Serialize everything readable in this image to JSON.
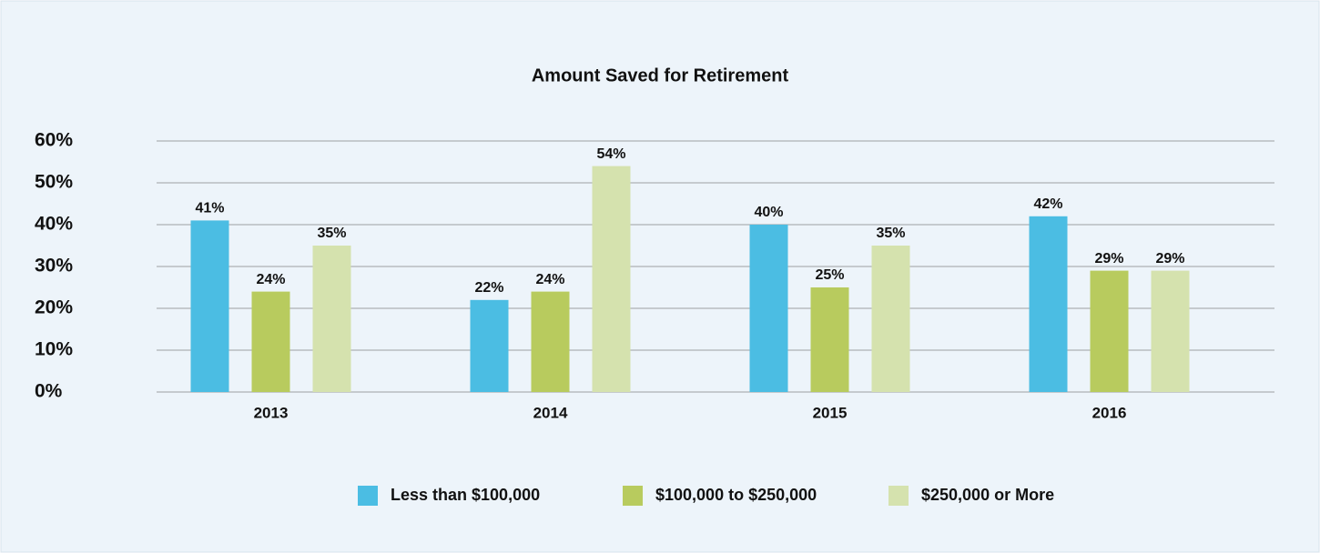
{
  "chart_data": {
    "type": "bar",
    "title": "Amount Saved for Retirement",
    "categories": [
      "2013",
      "2014",
      "2015",
      "2016"
    ],
    "series": [
      {
        "name": "Less than $100,000",
        "color": "#4bbde3",
        "values": [
          41,
          22,
          40,
          42
        ],
        "value_labels": [
          "41%",
          "22%",
          "40%",
          "42%"
        ]
      },
      {
        "name": "$100,000 to $250,000",
        "color": "#b8cb5e",
        "values": [
          24,
          24,
          25,
          29
        ],
        "value_labels": [
          "24%",
          "24%",
          "25%",
          "29%"
        ]
      },
      {
        "name": "$250,000 or More",
        "color": "#d5e2ae",
        "values": [
          35,
          54,
          35,
          29
        ],
        "value_labels": [
          "35%",
          "54%",
          "35%",
          "29%"
        ]
      }
    ],
    "ylim": [
      0,
      60
    ],
    "yticks": [
      {
        "value": 0,
        "label": "0%"
      },
      {
        "value": 10,
        "label": "10%"
      },
      {
        "value": 20,
        "label": "20%"
      },
      {
        "value": 30,
        "label": "30%"
      },
      {
        "value": 40,
        "label": "40%"
      },
      {
        "value": 50,
        "label": "50%"
      },
      {
        "value": 60,
        "label": "60%"
      }
    ],
    "grid": true,
    "legend": "bottom"
  }
}
